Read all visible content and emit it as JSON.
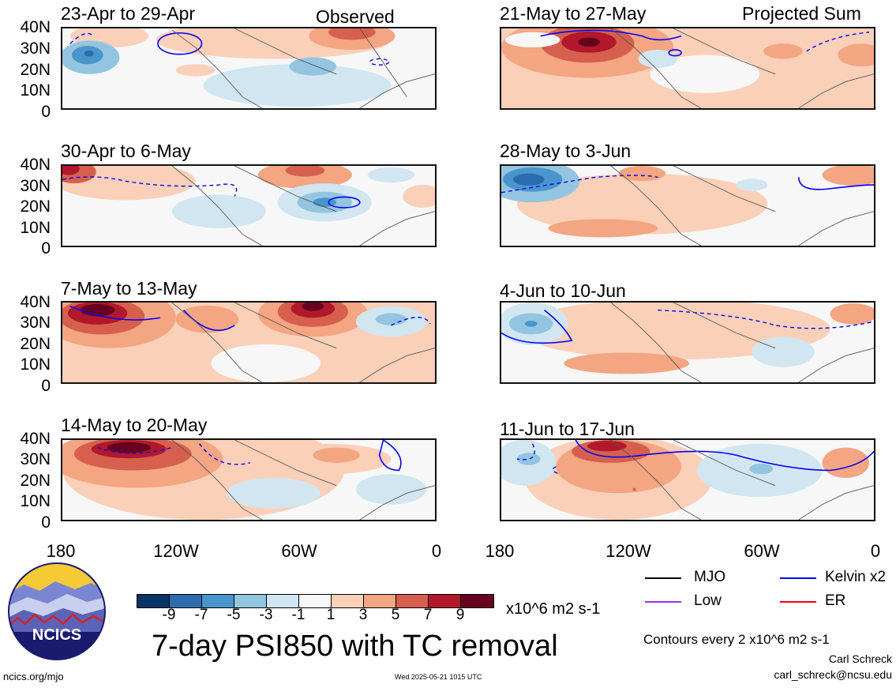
{
  "header": {
    "observed_label": "Observed",
    "projected_label": "Projected Sum"
  },
  "panels": [
    {
      "title": "23-Apr to 29-Apr"
    },
    {
      "title": "30-Apr to 6-May"
    },
    {
      "title": "7-May to 13-May"
    },
    {
      "title": "14-May to 20-May"
    },
    {
      "title": "21-May to 27-May"
    },
    {
      "title": "28-May to 3-Jun"
    },
    {
      "title": "4-Jun to 10-Jun"
    },
    {
      "title": "11-Jun to 17-Jun"
    }
  ],
  "lat_labels": [
    "40N",
    "30N",
    "20N",
    "10N",
    "0"
  ],
  "lon_labels": [
    "180",
    "120W",
    "60W",
    "0"
  ],
  "colorbar": {
    "colors": [
      "#083466",
      "#2b6cb0",
      "#4a95cb",
      "#94c5e0",
      "#d1e6f1",
      "#f7f7f7",
      "#fbd0b9",
      "#f4a582",
      "#d6604d",
      "#b2182b",
      "#67001f"
    ],
    "ticks": [
      "-9",
      "-7",
      "-5",
      "-3",
      "-1",
      "1",
      "3",
      "5",
      "7",
      "9"
    ],
    "units": "x10^6 m2 s-1"
  },
  "legend": {
    "mjo": {
      "label": "MJO",
      "color": "#000000"
    },
    "kelvin": {
      "label": "Kelvin x2",
      "color": "#0000ff"
    },
    "low": {
      "label": "Low",
      "color": "#9b30ff"
    },
    "er": {
      "label": "ER",
      "color": "#ff0000"
    }
  },
  "contour_note": "Contours every 2 x10^6 m2 s-1",
  "title": "7-day PSI850 with TC removal",
  "logo_text": "NCICS",
  "footer": {
    "url": "ncics.org/mjo",
    "timestamp": "Wed 2025-05-21 1015 UTC",
    "author": "Carl Schreck",
    "email": "carl_schreck@ncsu.edu"
  }
}
